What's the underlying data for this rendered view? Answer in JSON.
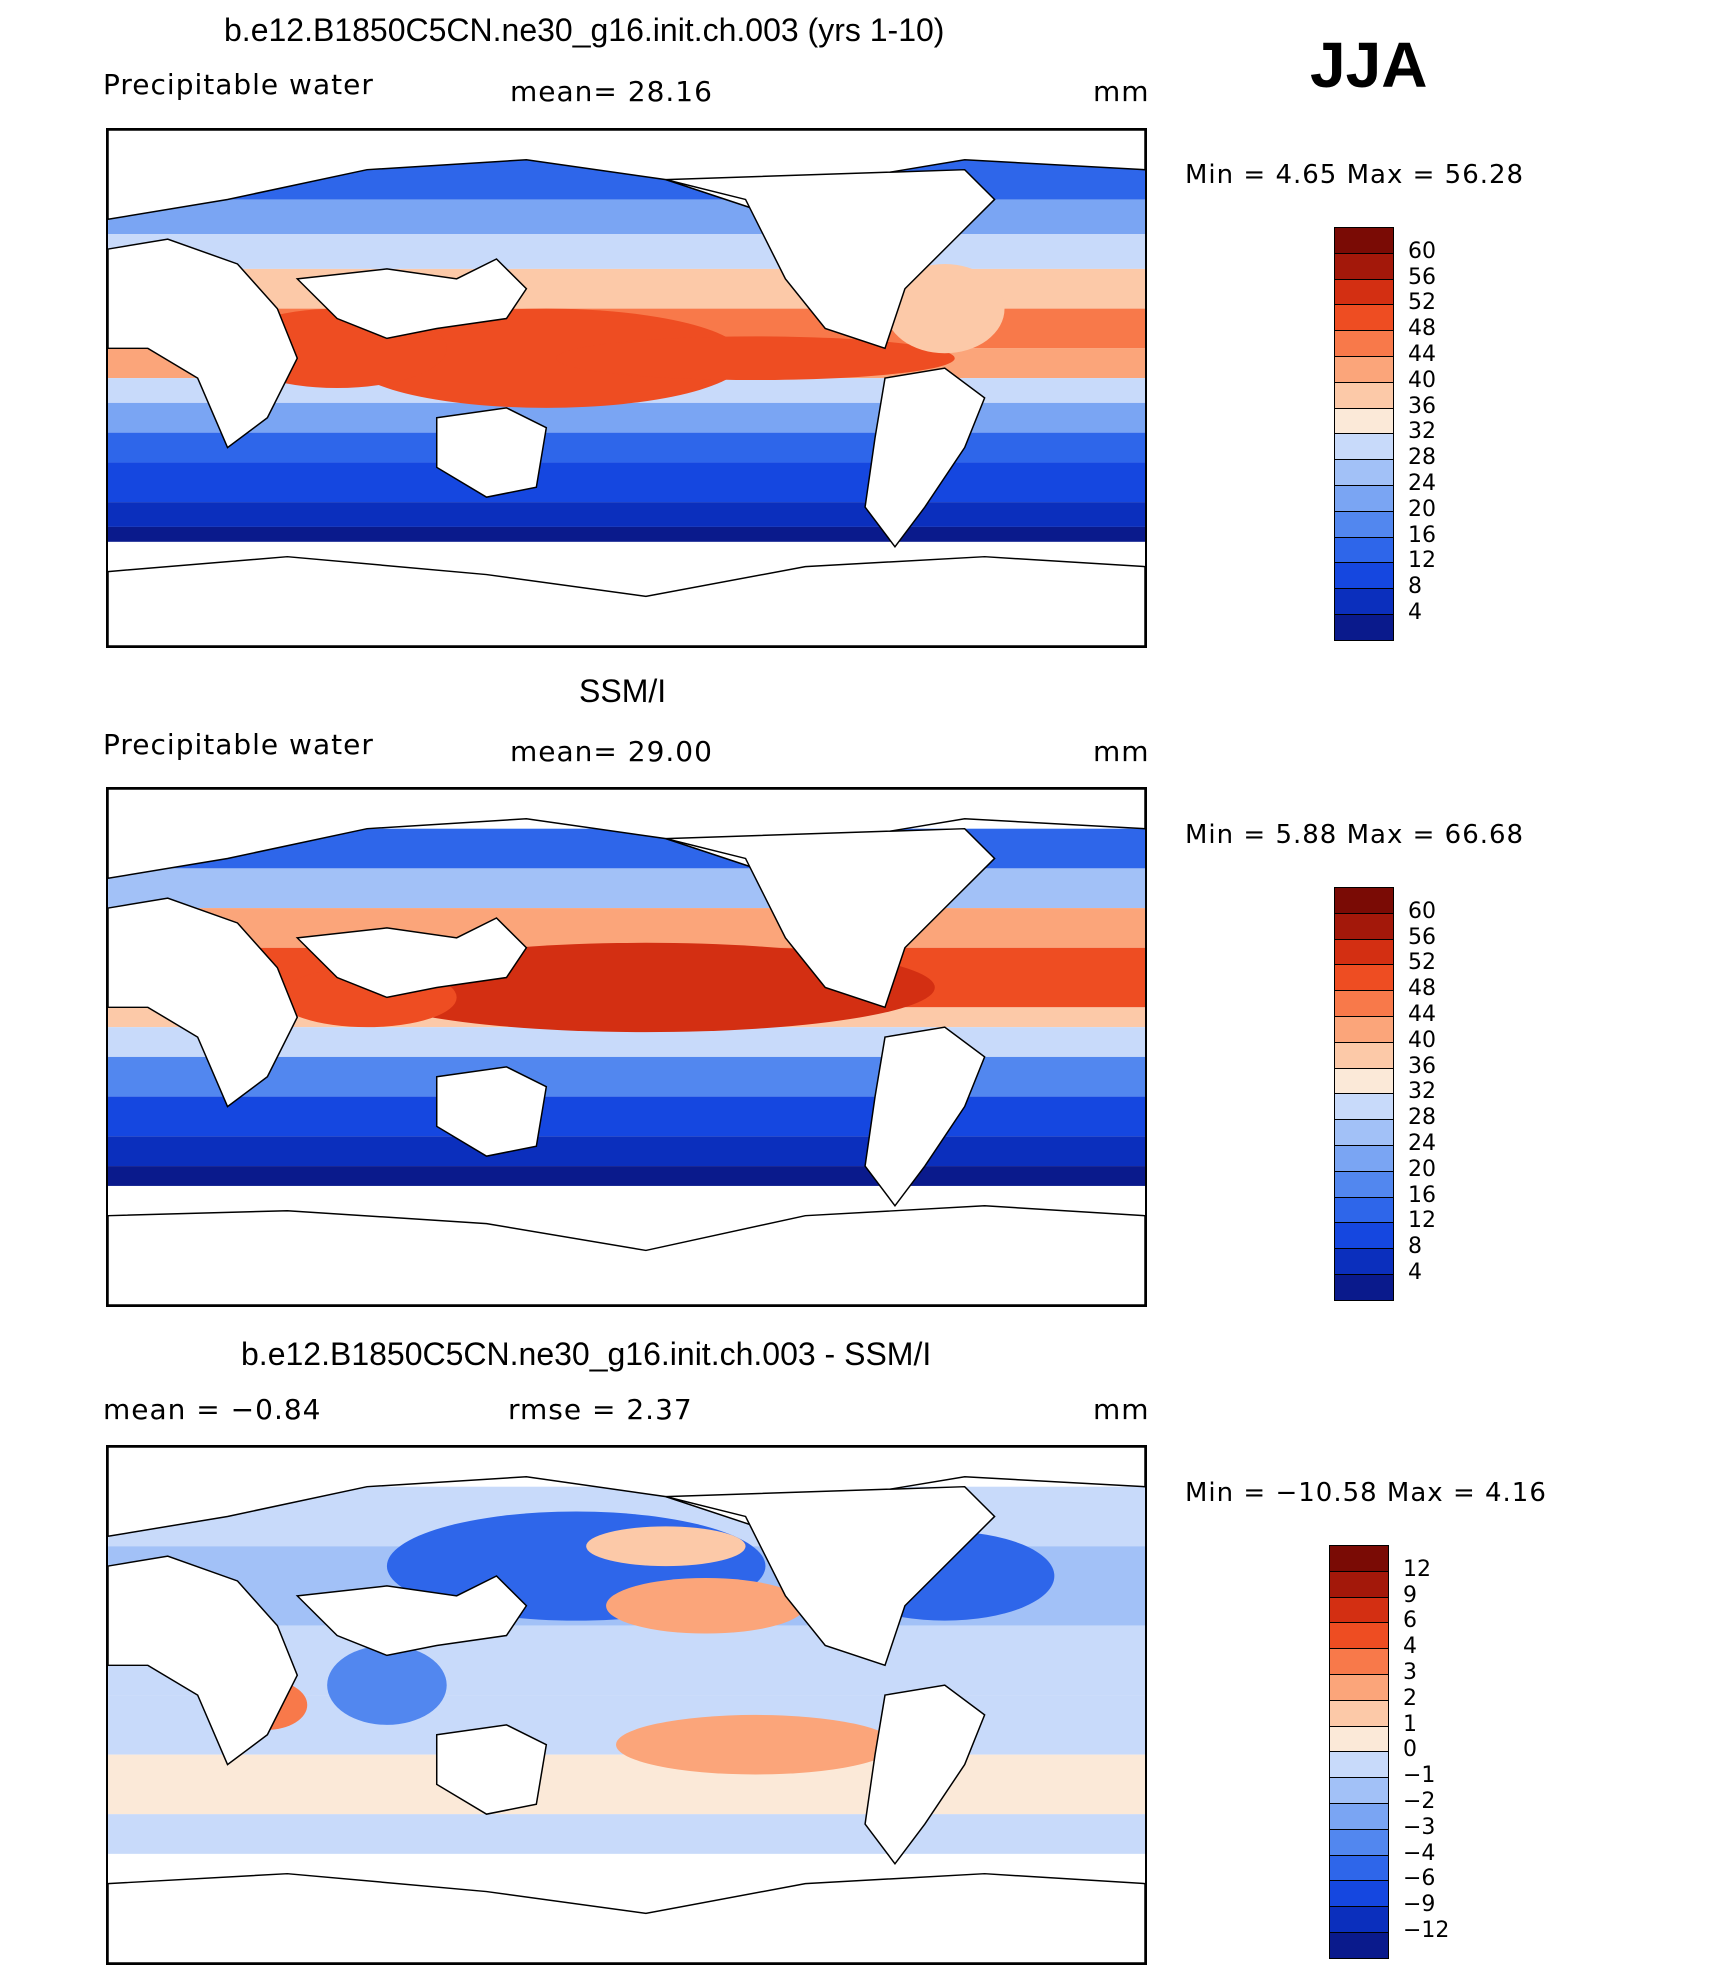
{
  "season": "JJA",
  "colors": {
    "abs_scale": [
      "#0a1a8c",
      "#0b2fbd",
      "#1547e0",
      "#2e66ea",
      "#5287ef",
      "#7aa5f3",
      "#a2c1f7",
      "#c8dafa",
      "#fbe9d8",
      "#fcc9a8",
      "#fba57a",
      "#f8794a",
      "#ee4d22",
      "#d32f12",
      "#a3180a",
      "#7a0b05"
    ],
    "diff_scale": [
      "#0a1a8c",
      "#0b2fbd",
      "#1547e0",
      "#2e66ea",
      "#5287ef",
      "#7aa5f3",
      "#a2c1f7",
      "#c8dafa",
      "#fbe9d8",
      "#fcc9a8",
      "#fba57a",
      "#f8794a",
      "#ee4d22",
      "#d32f12",
      "#a3180a",
      "#7a0b05"
    ]
  },
  "panels": [
    {
      "title": "b.e12.B1850C5CN.ne30_g16.init.ch.003 (yrs 1-10)",
      "left_label": "Precipitable  water",
      "mid_label": "mean=   28.16",
      "unit": "mm",
      "stats": "Min  =     4.65  Max  =     56.28",
      "colorbar_levels": [
        "60",
        "56",
        "52",
        "48",
        "44",
        "40",
        "36",
        "32",
        "28",
        "24",
        "20",
        "16",
        "12",
        "8",
        "4"
      ]
    },
    {
      "title": "SSM/I",
      "left_label": "Precipitable  water",
      "mid_label": "mean=   29.00",
      "unit": "mm",
      "stats": "Min  =     5.88  Max  =     66.68",
      "colorbar_levels": [
        "60",
        "56",
        "52",
        "48",
        "44",
        "40",
        "36",
        "32",
        "28",
        "24",
        "20",
        "16",
        "12",
        "8",
        "4"
      ]
    },
    {
      "title": "b.e12.B1850C5CN.ne30_g16.init.ch.003 - SSM/I",
      "left_label": "mean  =    −0.84",
      "mid_label": "rmse  =     2.37",
      "unit": "mm",
      "stats": "Min  = −10.58  Max  =      4.16",
      "colorbar_levels": [
        "12",
        "9",
        "6",
        "4",
        "3",
        "2",
        "1",
        "0",
        "−1",
        "−2",
        "−3",
        "−4",
        "−6",
        "−9",
        "−12"
      ]
    }
  ]
}
